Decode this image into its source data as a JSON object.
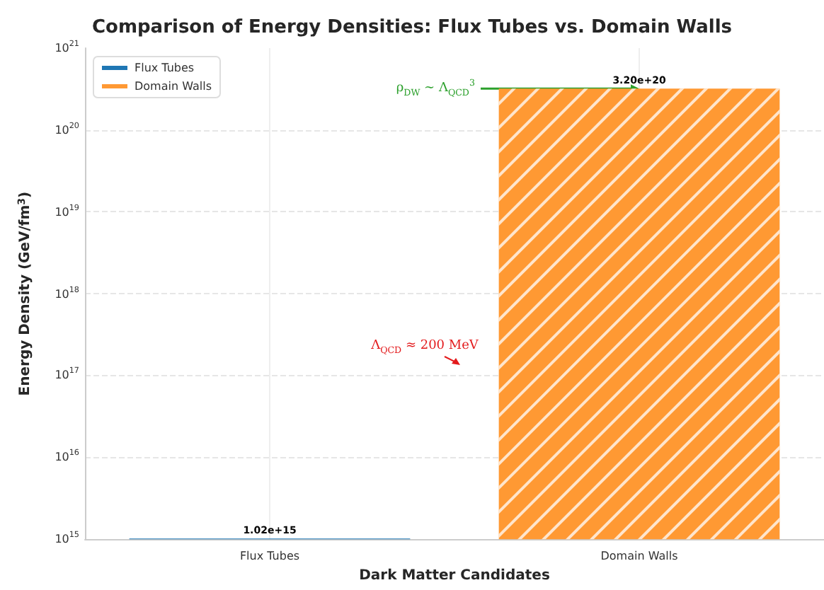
{
  "chart_data": {
    "type": "bar",
    "title": "Comparison of Energy Densities: Flux Tubes vs. Domain Walls",
    "xlabel": "Dark Matter Candidates",
    "ylabel": "Energy Density (GeV/fm$^{3}$)",
    "categories": [
      "Flux Tubes",
      "Domain Walls"
    ],
    "series": [
      {
        "name": "Flux Tubes",
        "color": "#1f77b4",
        "values": [
          1020000000000000.0,
          null
        ]
      },
      {
        "name": "Domain Walls",
        "color": "#ff9933",
        "values": [
          null,
          3.2e+20
        ]
      }
    ],
    "log": "y",
    "ylim": [
      1000000000000000.0,
      1e+21
    ],
    "yticks": [
      {
        "value": 1000000000000000.0,
        "label": "10$^{15}$"
      },
      {
        "value": 1e+16,
        "label": "10$^{16}$"
      },
      {
        "value": 1e+17,
        "label": "10$^{17}$"
      },
      {
        "value": 1e+18,
        "label": "10$^{18}$"
      },
      {
        "value": 1e+19,
        "label": "10$^{19}$"
      },
      {
        "value": 1e+20,
        "label": "10$^{20}$"
      },
      {
        "value": 1e+21,
        "label": "10$^{21}$"
      }
    ],
    "value_labels": [
      "1.02e+15",
      "3.20e+20"
    ],
    "annotations": [
      {
        "text": "ρ$_{DW}$ ∼ Λ$_{QCD}$$^{3}$",
        "x": "Domain Walls",
        "y": 3.2e+20
      },
      "Λ$_{QCD}$ ≈ 200 MeV"
    ],
    "grid": true,
    "legend": "top left"
  }
}
